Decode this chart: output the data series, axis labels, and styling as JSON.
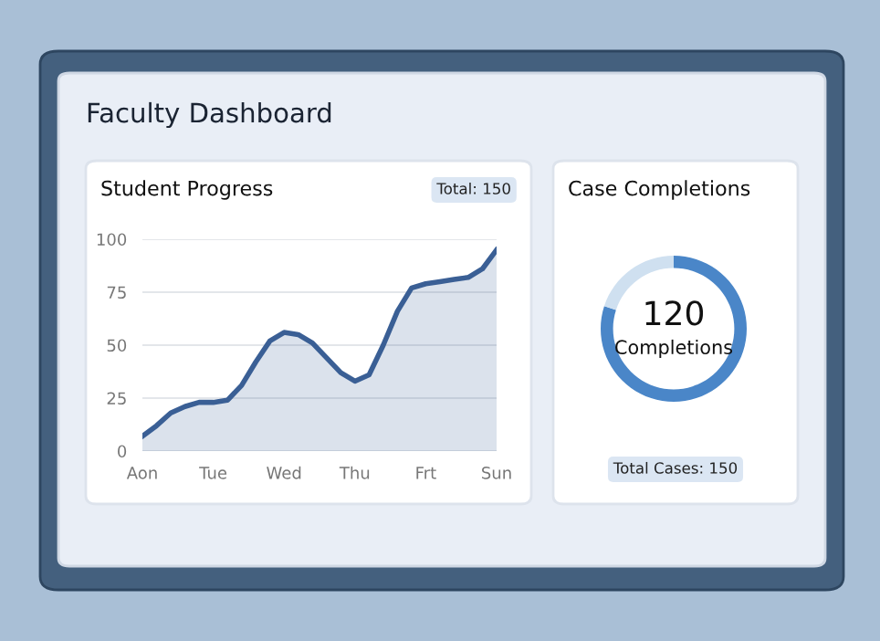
{
  "chart_data": [
    {
      "type": "other",
      "title": "Faculty Dashboard"
    },
    {
      "type": "area",
      "title": "Student Progress",
      "annotations": [
        "Total: 150"
      ],
      "categories": [
        "Aon",
        null,
        null,
        null,
        null,
        "Tue",
        null,
        null,
        null,
        null,
        "Wed",
        null,
        null,
        null,
        null,
        "Thu",
        null,
        null,
        null,
        null,
        "Frt",
        null,
        null,
        null,
        null,
        "Sun"
      ],
      "series": [
        {
          "color": "#3a5f95",
          "values": [
            7,
            12,
            18,
            21,
            23,
            23,
            24,
            31,
            42,
            52,
            56,
            55,
            51,
            44,
            37,
            33,
            36,
            50,
            66,
            77,
            79,
            80,
            81,
            82,
            86,
            95
          ]
        }
      ],
      "ylim": [
        0,
        100
      ],
      "yticks": [
        0,
        25,
        50,
        75,
        100
      ],
      "grid": "y",
      "legend": false
    },
    {
      "type": "donut",
      "title": "Case Completions",
      "annotations": [
        "120",
        "Completions",
        "Total Cases: 150"
      ],
      "categories": [
        null,
        null
      ],
      "values": [
        80,
        20
      ],
      "colors": [
        "#4a86c8",
        "#cfe0f0"
      ],
      "legend": false
    }
  ]
}
